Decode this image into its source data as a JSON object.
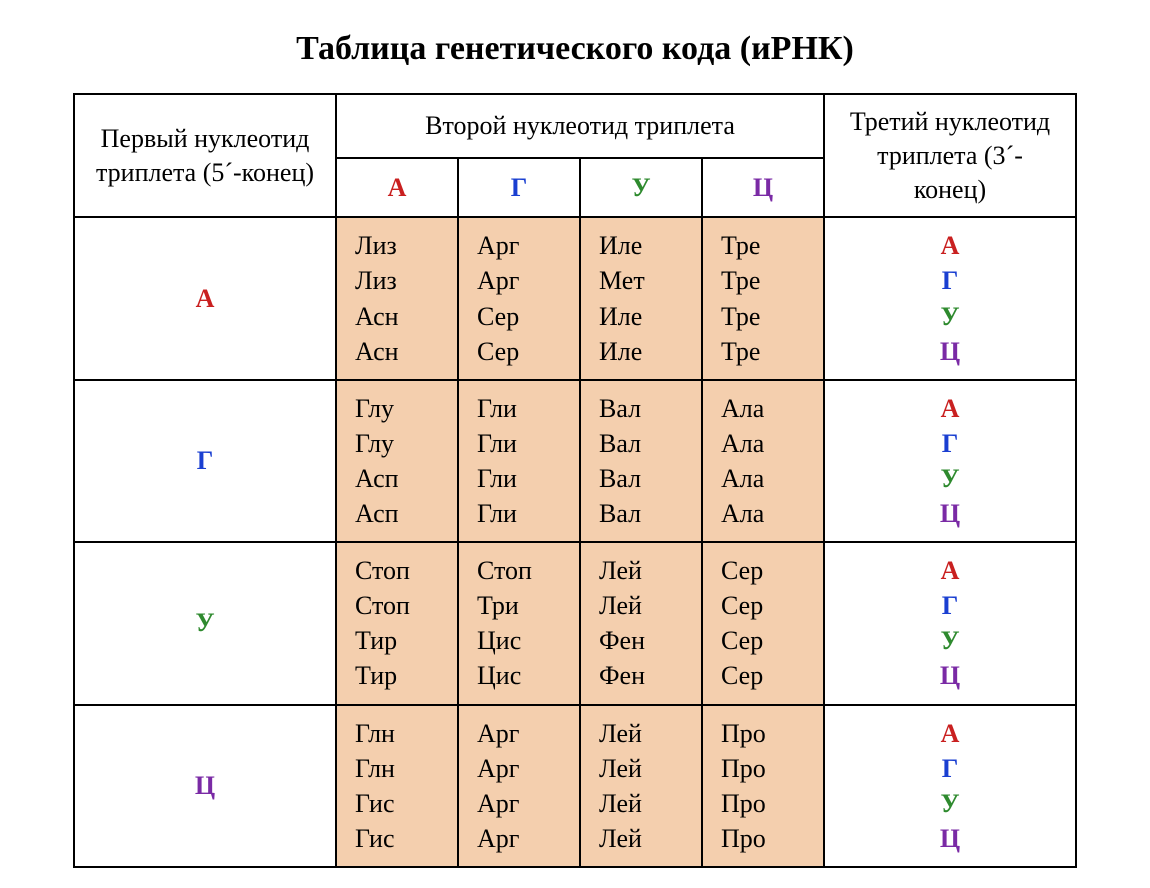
{
  "title": "Таблица генетического кода (иРНК)",
  "headers": {
    "first": "Первый нуклеотид триплета (5´-конец)",
    "second": "Второй нуклеотид триплета",
    "third": "Третий нуклеотид триплета (3´-конец)"
  },
  "nucleotides": [
    {
      "label": "А",
      "color": "#c92020"
    },
    {
      "label": "Г",
      "color": "#1a3fd1"
    },
    {
      "label": "У",
      "color": "#2e8a2e"
    },
    {
      "label": "Ц",
      "color": "#7a2aa5"
    }
  ],
  "aa_bg": "#f4cfae",
  "codon_table": {
    "А": {
      "А": [
        "Лиз",
        "Лиз",
        "Асн",
        "Асн"
      ],
      "Г": [
        "Арг",
        "Арг",
        "Сер",
        "Сер"
      ],
      "У": [
        "Иле",
        "Мет",
        "Иле",
        "Иле"
      ],
      "Ц": [
        "Тре",
        "Тре",
        "Тре",
        "Тре"
      ]
    },
    "Г": {
      "А": [
        "Глу",
        "Глу",
        "Асп",
        "Асп"
      ],
      "Г": [
        "Гли",
        "Гли",
        "Гли",
        "Гли"
      ],
      "У": [
        "Вал",
        "Вал",
        "Вал",
        "Вал"
      ],
      "Ц": [
        "Ала",
        "Ала",
        "Ала",
        "Ала"
      ]
    },
    "У": {
      "А": [
        "Стоп",
        "Стоп",
        "Тир",
        "Тир"
      ],
      "Г": [
        "Стоп",
        "Три",
        "Цис",
        "Цис"
      ],
      "У": [
        "Лей",
        "Лей",
        "Фен",
        "Фен"
      ],
      "Ц": [
        "Сер",
        "Сер",
        "Сер",
        "Сер"
      ]
    },
    "Ц": {
      "А": [
        "Глн",
        "Глн",
        "Гис",
        "Гис"
      ],
      "Г": [
        "Арг",
        "Арг",
        "Арг",
        "Арг"
      ],
      "У": [
        "Лей",
        "Лей",
        "Лей",
        "Лей"
      ],
      "Ц": [
        "Про",
        "Про",
        "Про",
        "Про"
      ]
    }
  }
}
